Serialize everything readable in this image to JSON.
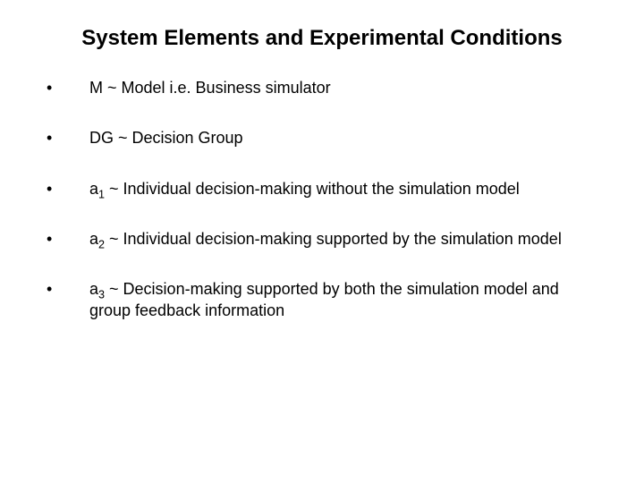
{
  "title": "System Elements and Experimental Conditions",
  "items": [
    {
      "pre": "M ~ Model i.e. Business simulator",
      "sub": "",
      "post": ""
    },
    {
      "pre": "DG ~ Decision Group",
      "sub": "",
      "post": ""
    },
    {
      "pre": "a",
      "sub": "1",
      "post": " ~ Individual decision-making without the simulation model"
    },
    {
      "pre": "a",
      "sub": "2",
      "post": " ~ Individual decision-making supported by the simulation model"
    },
    {
      "pre": "a",
      "sub": "3",
      "post": " ~ Decision-making supported by both the simulation model and group feedback information"
    }
  ]
}
